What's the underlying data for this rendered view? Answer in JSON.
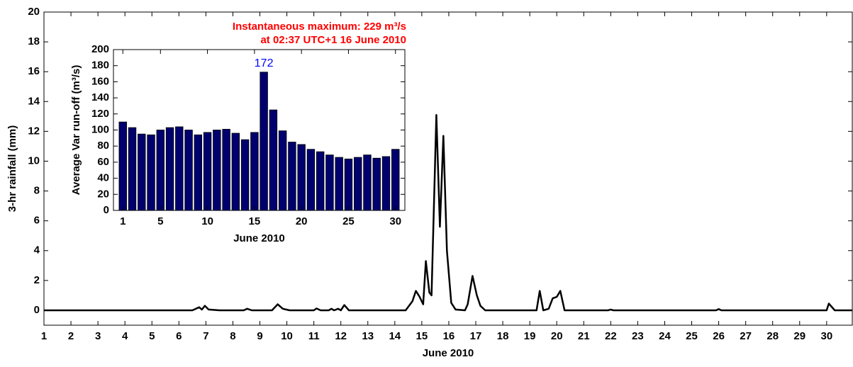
{
  "chart_data": [
    {
      "type": "line",
      "xlabel": "June 2010",
      "ylabel": "3-hr rainfall (mm)",
      "x": [
        1,
        6.5,
        6.75,
        6.85,
        6.96,
        7.1,
        7.5,
        8.4,
        8.53,
        8.7,
        9.45,
        9.66,
        9.85,
        10.1,
        11.0,
        11.1,
        11.25,
        11.55,
        11.65,
        11.75,
        11.9,
        12.0,
        12.13,
        12.3,
        14.4,
        14.65,
        14.78,
        14.92,
        15.05,
        15.15,
        15.28,
        15.36,
        15.54,
        15.67,
        15.8,
        15.93,
        16.09,
        16.25,
        16.6,
        16.7,
        16.88,
        17.04,
        17.17,
        17.35,
        19.25,
        19.37,
        19.5,
        19.7,
        19.85,
        20.0,
        20.13,
        20.29,
        21.9,
        22.0,
        22.1,
        25.9,
        26.0,
        26.1,
        30.0,
        30.08,
        30.3,
        30.95
      ],
      "values": [
        0,
        0,
        0.2,
        0.05,
        0.3,
        0.05,
        0,
        0,
        0.1,
        0,
        0,
        0.4,
        0.1,
        0,
        0,
        0.12,
        0,
        0,
        0.1,
        0,
        0.1,
        0,
        0.35,
        0,
        0,
        0.6,
        1.3,
        0.9,
        0.4,
        3.3,
        1.2,
        1.0,
        13.1,
        5.6,
        11.7,
        4.0,
        0.5,
        0.05,
        0,
        0.4,
        2.3,
        1.0,
        0.3,
        0,
        0,
        1.3,
        0,
        0.1,
        0.8,
        0.9,
        1.3,
        0,
        0,
        0.05,
        0,
        0,
        0.08,
        0,
        0,
        0.45,
        0,
        0
      ],
      "color": "#000000",
      "xlim": [
        1,
        30.95
      ],
      "xticks": [
        1,
        2,
        3,
        4,
        5,
        6,
        7,
        8,
        9,
        10,
        11,
        12,
        13,
        14,
        15,
        16,
        17,
        18,
        19,
        20,
        21,
        22,
        23,
        24,
        25,
        26,
        27,
        28,
        29,
        30
      ],
      "ylim": [
        -1,
        20
      ],
      "yticks": [
        0,
        2,
        4,
        6,
        8,
        10,
        12,
        14,
        16,
        18,
        20
      ]
    },
    {
      "type": "bar",
      "title": [
        "Instantaneous maximum: 229 m³/s",
        "at 02:37 UTC+1 16 June 2010"
      ],
      "title_color": "#ff0000",
      "xlabel": "June 2010",
      "ylabel": "Average Var run-off (m³/s)",
      "x": [
        1,
        2,
        3,
        4,
        5,
        6,
        7,
        8,
        9,
        10,
        11,
        12,
        13,
        14,
        15,
        16,
        17,
        18,
        19,
        20,
        21,
        22,
        23,
        24,
        25,
        26,
        27,
        28,
        29,
        30
      ],
      "values": [
        110,
        103,
        95,
        94,
        100,
        103,
        104,
        100,
        94,
        97,
        100,
        101,
        96,
        88,
        97,
        172,
        125,
        99,
        85,
        82,
        76,
        73,
        69,
        66,
        64,
        66,
        69,
        65,
        67,
        76
      ],
      "color": "#00006e",
      "label_max": true,
      "label_color": "#0000ff",
      "xlim": [
        0,
        31
      ],
      "xticks": [
        1,
        5,
        10,
        15,
        20,
        25,
        30
      ],
      "ylim": [
        0,
        200
      ],
      "yticks": [
        0,
        20,
        40,
        60,
        80,
        100,
        120,
        140,
        160,
        180,
        200
      ]
    }
  ]
}
